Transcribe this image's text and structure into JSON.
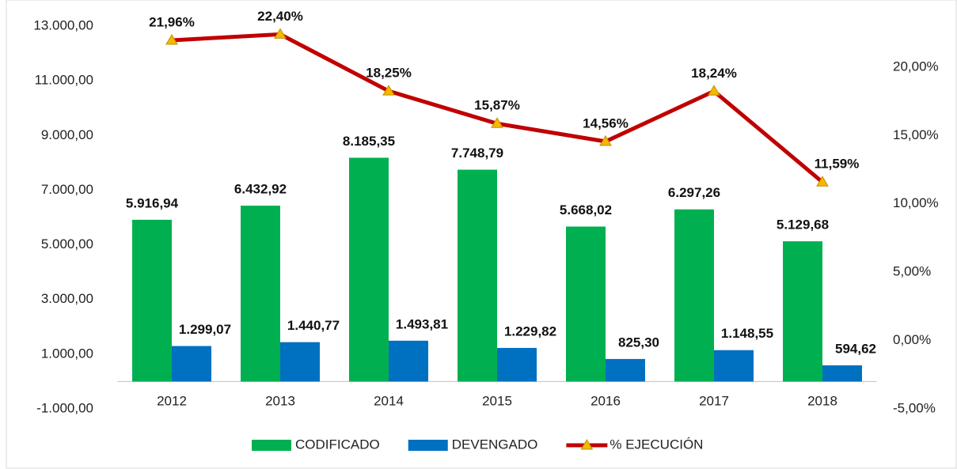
{
  "chart_data": {
    "type": "bar",
    "categories": [
      "2012",
      "2013",
      "2014",
      "2015",
      "2016",
      "2017",
      "2018"
    ],
    "series": [
      {
        "name": "CODIFICADO",
        "type": "bar",
        "color": "#00b050",
        "values": [
          5916.94,
          6432.92,
          8185.35,
          7748.79,
          5668.02,
          6297.26,
          5129.68
        ],
        "value_labels": [
          "5.916,94",
          "6.432,92",
          "8.185,35",
          "7.748,79",
          "5.668,02",
          "6.297,26",
          "5.129,68"
        ]
      },
      {
        "name": "DEVENGADO",
        "type": "bar",
        "color": "#0070c0",
        "values": [
          1299.07,
          1440.77,
          1493.81,
          1229.82,
          825.3,
          1148.55,
          594.62
        ],
        "value_labels": [
          "1.299,07",
          "1.440,77",
          "1.493,81",
          "1.229,82",
          "825,30",
          "1.148,55",
          "594,62"
        ]
      },
      {
        "name": "% EJECUCIÓN",
        "type": "line",
        "axis": "y2",
        "color": "#c00000",
        "marker_color": "#f5b800",
        "values": [
          21.96,
          22.4,
          18.25,
          15.87,
          14.56,
          18.24,
          11.59
        ],
        "value_labels": [
          "21,96%",
          "22,40%",
          "18,25%",
          "15,87%",
          "14,56%",
          "18,24%",
          "11,59%"
        ]
      }
    ],
    "ylim": [
      -1000,
      13000
    ],
    "yticks": [
      {
        "value": -1000,
        "label": "-1.000,00"
      },
      {
        "value": 1000,
        "label": "1.000,00"
      },
      {
        "value": 3000,
        "label": "3.000,00"
      },
      {
        "value": 5000,
        "label": "5.000,00"
      },
      {
        "value": 7000,
        "label": "7.000,00"
      },
      {
        "value": 9000,
        "label": "9.000,00"
      },
      {
        "value": 11000,
        "label": "11.000,00"
      },
      {
        "value": 13000,
        "label": "13.000,00"
      }
    ],
    "y2lim": [
      -5,
      23
    ],
    "y2ticks": [
      {
        "value": -5,
        "label": "-5,00%"
      },
      {
        "value": 0,
        "label": "0,00%"
      },
      {
        "value": 5,
        "label": "5,00%"
      },
      {
        "value": 10,
        "label": "10,00%"
      },
      {
        "value": 15,
        "label": "15,00%"
      },
      {
        "value": 20,
        "label": "20,00%"
      }
    ],
    "grid": false,
    "legend": "bottom"
  }
}
